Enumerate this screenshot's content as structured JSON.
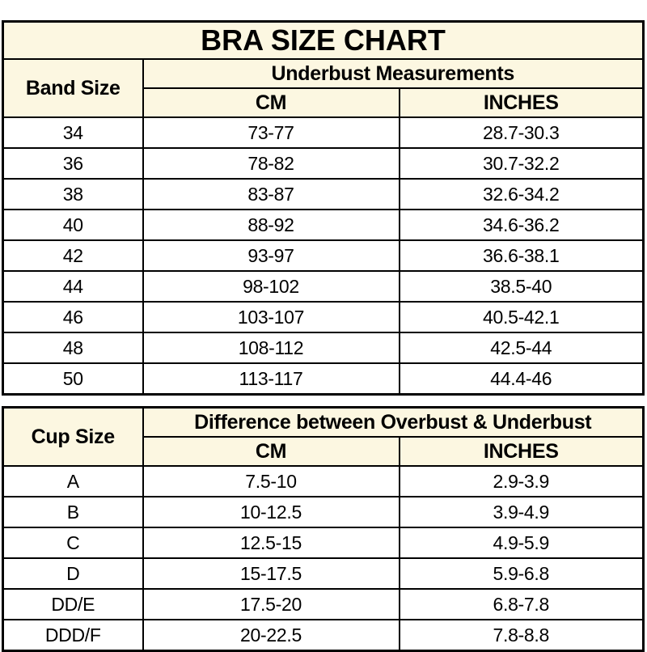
{
  "colors": {
    "header_bg": "#fcf7e1",
    "row_bg": "#ffffff",
    "border": "#000000",
    "text": "#000000"
  },
  "chart_data": [
    {
      "type": "table",
      "title": "BRA SIZE CHART",
      "corner_header": "Band Size",
      "group_header": "Underbust Measurements",
      "columns": [
        "CM",
        "INCHES"
      ],
      "rows": [
        [
          "34",
          "73-77",
          "28.7-30.3"
        ],
        [
          "36",
          "78-82",
          "30.7-32.2"
        ],
        [
          "38",
          "83-87",
          "32.6-34.2"
        ],
        [
          "40",
          "88-92",
          "34.6-36.2"
        ],
        [
          "42",
          "93-97",
          "36.6-38.1"
        ],
        [
          "44",
          "98-102",
          "38.5-40"
        ],
        [
          "46",
          "103-107",
          "40.5-42.1"
        ],
        [
          "48",
          "108-112",
          "42.5-44"
        ],
        [
          "50",
          "113-117",
          "44.4-46"
        ]
      ]
    },
    {
      "type": "table",
      "title": "",
      "corner_header": "Cup Size",
      "group_header": "Difference between Overbust & Underbust",
      "columns": [
        "CM",
        "INCHES"
      ],
      "rows": [
        [
          "A",
          "7.5-10",
          "2.9-3.9"
        ],
        [
          "B",
          "10-12.5",
          "3.9-4.9"
        ],
        [
          "C",
          "12.5-15",
          "4.9-5.9"
        ],
        [
          "D",
          "15-17.5",
          "5.9-6.8"
        ],
        [
          "DD/E",
          "17.5-20",
          "6.8-7.8"
        ],
        [
          "DDD/F",
          "20-22.5",
          "7.8-8.8"
        ]
      ]
    }
  ]
}
